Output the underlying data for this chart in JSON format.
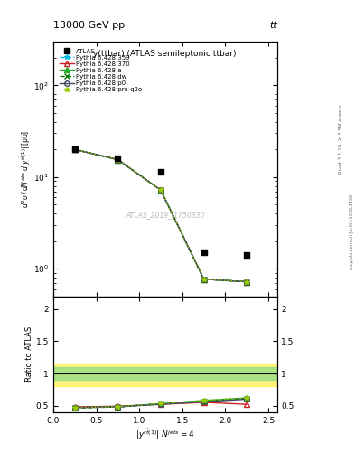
{
  "title_top": "13000 GeV pp",
  "title_right": "tt",
  "plot_title": "y(ttbar) (ATLAS semileptonic ttbar)",
  "watermark": "ATLAS_2019_I1750330",
  "right_label": "Rivet 3.1.10, ≥ 3.5M events",
  "arxiv_label": "mcplots.cern.ch [arXiv:1306.3436]",
  "atlas_x": [
    0.25,
    0.75,
    1.25,
    1.75,
    2.25
  ],
  "atlas_y": [
    20.0,
    16.0,
    11.5,
    1.5,
    1.4
  ],
  "mc_x": [
    0.25,
    0.75,
    1.25,
    1.75,
    2.25
  ],
  "mc_359_y": [
    20.0,
    15.5,
    7.2,
    0.77,
    0.72
  ],
  "mc_370_y": [
    20.0,
    15.5,
    7.2,
    0.77,
    0.72
  ],
  "mc_a_y": [
    20.0,
    15.5,
    7.2,
    0.77,
    0.72
  ],
  "mc_dw_y": [
    20.0,
    15.5,
    7.2,
    0.77,
    0.72
  ],
  "mc_p0_y": [
    20.0,
    15.5,
    7.2,
    0.77,
    0.72
  ],
  "mc_pro_y": [
    20.0,
    15.5,
    7.2,
    0.77,
    0.72
  ],
  "ratio_359": [
    0.47,
    0.48,
    0.53,
    0.57,
    0.61
  ],
  "ratio_370": [
    0.48,
    0.49,
    0.52,
    0.55,
    0.52
  ],
  "ratio_a": [
    0.47,
    0.48,
    0.53,
    0.58,
    0.62
  ],
  "ratio_dw": [
    0.46,
    0.48,
    0.53,
    0.57,
    0.61
  ],
  "ratio_p0": [
    0.47,
    0.48,
    0.52,
    0.56,
    0.6
  ],
  "ratio_pro": [
    0.47,
    0.48,
    0.53,
    0.58,
    0.62
  ],
  "band_yellow_lo": 0.8,
  "band_yellow_hi": 1.15,
  "band_green_lo": 0.9,
  "band_green_hi": 1.1,
  "ylim_main_lo": 0.5,
  "ylim_main_hi": 300,
  "ylim_ratio_lo": 0.4,
  "ylim_ratio_hi": 2.2,
  "xlim_lo": 0.0,
  "xlim_hi": 2.6,
  "colors": {
    "359": "#00bbdd",
    "370": "#cc2222",
    "a": "#22aa22",
    "dw": "#007700",
    "p0": "#444466",
    "pro": "#99cc00"
  },
  "legend_labels": [
    "ATLAS",
    "Pythia 6.428 359",
    "Pythia 6.428 370",
    "Pythia 6.428 a",
    "Pythia 6.428 dw",
    "Pythia 6.428 p0",
    "Pythia 6.428 pro-q2o"
  ]
}
